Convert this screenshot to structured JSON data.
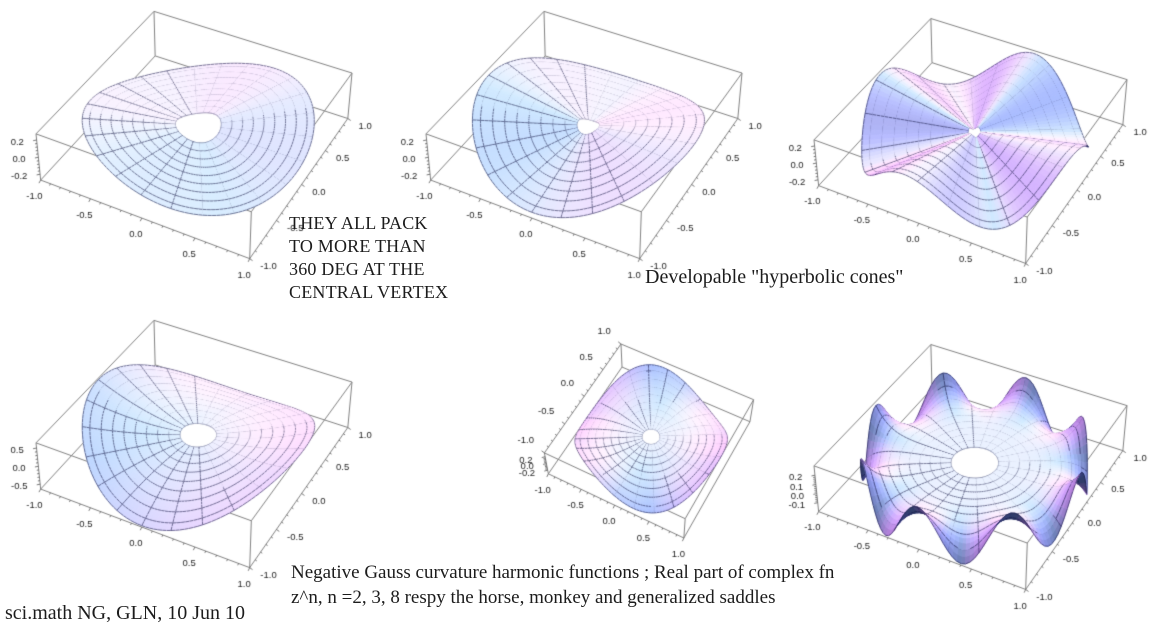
{
  "annotations": {
    "pack_note": "THEY ALL PACK\nTO MORE THAN\n360 DEG AT THE\nCENTRAL VERTEX",
    "cones_caption": "Developable \"hyperbolic cones\"",
    "bottom_caption": "Negative Gauss curvature harmonic functions ; Real part of complex fn\nz^n, n =2, 3, 8 respy the horse, monkey and generalized saddles",
    "credit": "sci.math NG, GLN, 10 Jun 10"
  },
  "chart_data": [
    {
      "id": "cone-2-a",
      "type": "surface3d",
      "panel": "top-left",
      "description": "developable hyperbolic cone, gentle 2-fold wave over annulus",
      "x_ticks": [
        -1.0,
        -0.5,
        0.0,
        0.5,
        1.0
      ],
      "y_ticks": [
        -1.0,
        -0.5,
        0.0,
        0.5,
        1.0
      ],
      "z_ticks": [
        -0.2,
        0.0,
        0.2
      ],
      "z_range": [
        -0.27,
        0.27
      ],
      "surface": {
        "k": 2,
        "pow": 1,
        "amp": 0.14,
        "phase": -1.6,
        "r0": 0.2
      },
      "view": {
        "azimuth": -62,
        "elevation": 40,
        "y_labels": "right"
      }
    },
    {
      "id": "cone-2-b",
      "type": "surface3d",
      "panel": "top-middle",
      "description": "developable hyperbolic cone, saddle cone z = a r cos(2 theta)",
      "x_ticks": [
        -1.0,
        -0.5,
        0.0,
        0.5,
        1.0
      ],
      "y_ticks": [
        -1.0,
        -0.5,
        0.0,
        0.5,
        1.0
      ],
      "z_ticks": [
        -0.2,
        0.0,
        0.2
      ],
      "z_range": [
        -0.27,
        0.27
      ],
      "surface": {
        "k": 2,
        "pow": 1,
        "amp": 0.2,
        "phase": 0,
        "r0": 0.1
      },
      "view": {
        "azimuth": -62,
        "elevation": 40,
        "y_labels": "right"
      }
    },
    {
      "id": "cone-8",
      "type": "surface3d",
      "panel": "top-right",
      "description": "developable hyperbolic cone, many-fin pinwheel cone",
      "x_ticks": [
        -1.0,
        -0.5,
        0.0,
        0.5,
        1.0
      ],
      "y_ticks": [
        -1.0,
        -0.5,
        0.0,
        0.5,
        1.0
      ],
      "z_ticks": [
        -0.2,
        0.0,
        0.2
      ],
      "z_range": [
        -0.27,
        0.27
      ],
      "surface": {
        "k": 4,
        "pow": 1,
        "amp": 0.24,
        "phase": 0.4,
        "r0": 0.06
      },
      "view": {
        "azimuth": -62,
        "elevation": 40,
        "y_labels": "right"
      }
    },
    {
      "id": "horse-saddle-n2",
      "type": "surface3d",
      "panel": "bottom-left",
      "description": "horse saddle, Re(z^2) = r^2 cos(2 theta) over annulus",
      "x_ticks": [
        -1.0,
        -0.5,
        0.0,
        0.5,
        1.0
      ],
      "y_ticks": [
        -1.0,
        -0.5,
        0.0,
        0.5,
        1.0
      ],
      "z_ticks": [
        -0.5,
        0.0,
        0.5
      ],
      "z_range": [
        -0.64,
        0.64
      ],
      "surface": {
        "k": 2,
        "pow": 2,
        "amp": 0.6,
        "phase": 0,
        "r0": 0.16
      },
      "view": {
        "azimuth": -62,
        "elevation": 40,
        "y_labels": "right"
      }
    },
    {
      "id": "monkey-saddle-n3",
      "type": "surface3d",
      "panel": "bottom-middle",
      "description": "monkey saddle, Re(z^3) = r^3 cos(3 theta) over annulus",
      "x_ticks": [
        -1.0,
        -0.5,
        0.0,
        0.5,
        1.0
      ],
      "y_ticks": [
        -1.0,
        -0.5,
        0.0,
        0.5,
        1.0
      ],
      "z_ticks": [
        -0.2,
        0.0,
        0.2
      ],
      "z_range": [
        -0.31,
        0.31
      ],
      "surface": {
        "k": 3,
        "pow": 3,
        "amp": 0.3,
        "phase": 0,
        "r0": 0.12
      },
      "view": {
        "azimuth": -62,
        "elevation": 57,
        "y_labels": "top"
      }
    },
    {
      "id": "generalized-saddle-n8",
      "type": "surface3d",
      "panel": "bottom-right",
      "description": "generalized saddle, Re(z^8) = r^8 cos(8 theta) over annulus",
      "x_ticks": [
        -1.0,
        -0.5,
        0.0,
        0.5,
        1.0
      ],
      "y_ticks": [
        -1.0,
        -0.5,
        0.0,
        0.5,
        1.0
      ],
      "z_ticks": [
        -0.1,
        0.0,
        0.1,
        0.2
      ],
      "z_range": [
        -0.2,
        0.3
      ],
      "surface": {
        "k": 8,
        "pow": 8,
        "amp": 0.26,
        "phase": 0,
        "r0": 0.21
      },
      "view": {
        "azimuth": -62,
        "elevation": 40,
        "y_labels": "right"
      }
    }
  ],
  "style": {
    "box_edge_color": "#808080",
    "mesh_color": "rgba(12,14,60,0.85)",
    "tick_label_color": "#222222",
    "background": "#ffffff"
  }
}
